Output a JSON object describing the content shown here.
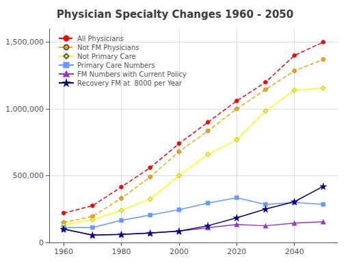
{
  "chart_data": {
    "type": "line",
    "title": "Physician Specialty Changes 1960 - 2050",
    "x": [
      1960,
      1970,
      1980,
      1990,
      2000,
      2010,
      2020,
      2030,
      2040,
      2050
    ],
    "series": [
      {
        "name": "All Physicians",
        "color": "#FF0000",
        "line_style": "dashed",
        "marker": "circle",
        "values": [
          220000,
          275000,
          415000,
          560000,
          740000,
          900000,
          1060000,
          1200000,
          1400000,
          1500000
        ]
      },
      {
        "name": "Not FM Physicians",
        "color": "#FFA500",
        "line_style": "dashed",
        "marker": "circle",
        "values": [
          150000,
          195000,
          330000,
          490000,
          680000,
          835000,
          1000000,
          1145000,
          1285000,
          1370000
        ]
      },
      {
        "name": "Not Primary Care",
        "color": "#FFFF00",
        "line_style": "solid",
        "marker": "diamond",
        "values": [
          130000,
          170000,
          240000,
          325000,
          500000,
          660000,
          770000,
          985000,
          1140000,
          1155000
        ]
      },
      {
        "name": "Primary Care Numbers",
        "color": "#6699FF",
        "line_style": "solid",
        "marker": "square",
        "values": [
          112000,
          112000,
          165000,
          205000,
          245000,
          295000,
          335000,
          285000,
          300000,
          285000
        ]
      },
      {
        "name": "FM Numbers with Current Policy",
        "color": "#9933CC",
        "line_style": "solid",
        "marker": "triangle",
        "values": [
          100000,
          55000,
          60000,
          70000,
          85000,
          110000,
          135000,
          125000,
          145000,
          155000
        ]
      },
      {
        "name": "Recovery FM at  8000 per Year",
        "color": "#000080",
        "line_style": "solid",
        "marker": "star",
        "values": [
          100000,
          55000,
          60000,
          70000,
          85000,
          125000,
          185000,
          250000,
          305000,
          420000
        ]
      }
    ],
    "xlim": [
      1955,
      2055
    ],
    "xticks": [
      1960,
      1980,
      2000,
      2020,
      2040
    ],
    "ylim": [
      0,
      1600000
    ],
    "yticks": [
      0,
      {
        "value": 500000,
        "label": "500,000"
      },
      {
        "value": 1000000,
        "label": "1,000,000"
      },
      {
        "value": 1500000,
        "label": "1,500,000"
      }
    ],
    "grid": true,
    "legend": "upper left"
  }
}
